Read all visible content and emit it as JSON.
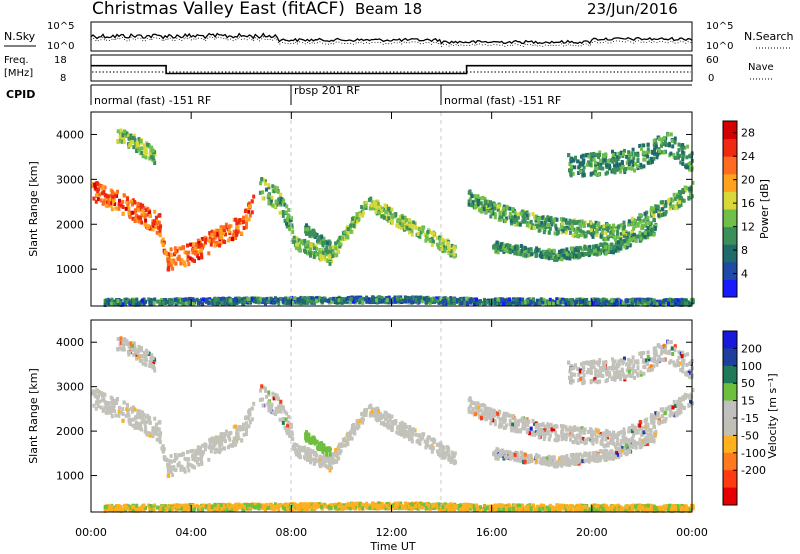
{
  "header": {
    "station": "Christmas Valley East (fitACF)",
    "beam": "Beam 18",
    "date": "23/Jun/2016"
  },
  "labels": {
    "nsky": "N.Sky",
    "nsearch": "N.Search",
    "freq_line1": "Freq.",
    "freq_line2": "[MHz]",
    "nave": "Nave",
    "cpid": "CPID",
    "xaxis_title": "Time UT",
    "yaxis_title": "Slant Range [km]",
    "power_colorbar_title": "Power [dB]",
    "velocity_colorbar_title": "Velocity [m s⁻¹]"
  },
  "nsky_axis": {
    "left_ticks": [
      "10^5",
      "10^0"
    ],
    "right_ticks": [
      "10^5",
      "10^0"
    ]
  },
  "freq_axis": {
    "left_ticks": [
      "18",
      "8"
    ],
    "right_ticks": [
      "60",
      "0"
    ]
  },
  "cpid_segments": [
    {
      "label": "normal (fast) -151 RF",
      "start_hour": 0,
      "end_hour": 8
    },
    {
      "label": "rbsp 201 RF",
      "start_hour": 8,
      "end_hour": 14
    },
    {
      "label": "normal (fast) -151 RF",
      "start_hour": 14,
      "end_hour": 24
    }
  ],
  "colors": {
    "power_scale": [
      "#1a1aff",
      "#1f4aa6",
      "#1f6b6b",
      "#3a8f5a",
      "#6fbf4a",
      "#d8d83a",
      "#ffa31f",
      "#ff6b1f",
      "#ee2a10",
      "#d40000"
    ],
    "velocity_scale": [
      "#1919d9",
      "#1f3f9e",
      "#1f7a5a",
      "#6fbf3f",
      "#c0c0c0",
      "#c0c0b8",
      "#ffb01f",
      "#ff7a1f",
      "#ff3a10",
      "#e60000"
    ],
    "velocity_gray": "#c2c2bb"
  },
  "chart_data": [
    {
      "type": "line",
      "name": "N.Sky / N.Search",
      "x_range_hours": [
        0,
        24
      ],
      "y_scale": "log",
      "y_ticks": [
        "10^0",
        "10^5"
      ]
    },
    {
      "type": "line",
      "name": "Freq. / Nave",
      "x_hours": [
        0,
        3,
        3,
        15,
        15,
        24
      ],
      "freq_mhz": [
        13.9,
        13.9,
        10.9,
        10.9,
        13.9,
        13.9
      ],
      "y_ticks_left": [
        "8",
        "18"
      ],
      "y_ticks_right": [
        "0",
        "60"
      ]
    },
    {
      "type": "heatmap",
      "name": "Power",
      "xlabel": "Time UT",
      "ylabel": "Slant Range [km]",
      "x_ticks": [
        "00:00",
        "04:00",
        "08:00",
        "12:00",
        "16:00",
        "20:00",
        "00:00"
      ],
      "y_ticks": [
        1000,
        2000,
        3000,
        4000
      ],
      "ylim_km": [
        180,
        4500
      ],
      "colorbar": {
        "title": "Power [dB]",
        "ticks": [
          4,
          8,
          12,
          16,
          20,
          24,
          28
        ],
        "range": [
          0,
          30
        ]
      },
      "echo_bands": [
        {
          "range_km": [
            [
              0,
              2700
            ],
            [
              1,
              2450
            ],
            [
              2,
              2200
            ],
            [
              3,
              1250
            ],
            [
              4,
              1500
            ],
            [
              5,
              1900
            ],
            [
              6,
              2300
            ]
          ],
          "power_db": 24
        },
        {
          "range_km": [
            [
              8,
              1600
            ],
            [
              9.5,
              1300
            ],
            [
              11,
              2500
            ],
            [
              12.5,
              2000
            ],
            [
              14,
              1450
            ]
          ],
          "power_db": 14
        },
        {
          "range_km": [
            [
              15,
              1700
            ],
            [
              18,
              1400
            ],
            [
              20,
              1500
            ],
            [
              22,
              1900
            ],
            [
              24,
              2800
            ]
          ],
          "power_db": 10
        }
      ]
    },
    {
      "type": "heatmap",
      "name": "Velocity",
      "xlabel": "Time UT",
      "ylabel": "Slant Range [km]",
      "x_ticks": [
        "00:00",
        "04:00",
        "08:00",
        "12:00",
        "16:00",
        "20:00",
        "00:00"
      ],
      "y_ticks": [
        1000,
        2000,
        3000,
        4000
      ],
      "ylim_km": [
        180,
        4500
      ],
      "colorbar": {
        "title": "Velocity [m s⁻¹]",
        "ticks": [
          200,
          100,
          50,
          15,
          -15,
          -50,
          -100,
          -200
        ],
        "range": [
          -250,
          250
        ]
      }
    }
  ]
}
